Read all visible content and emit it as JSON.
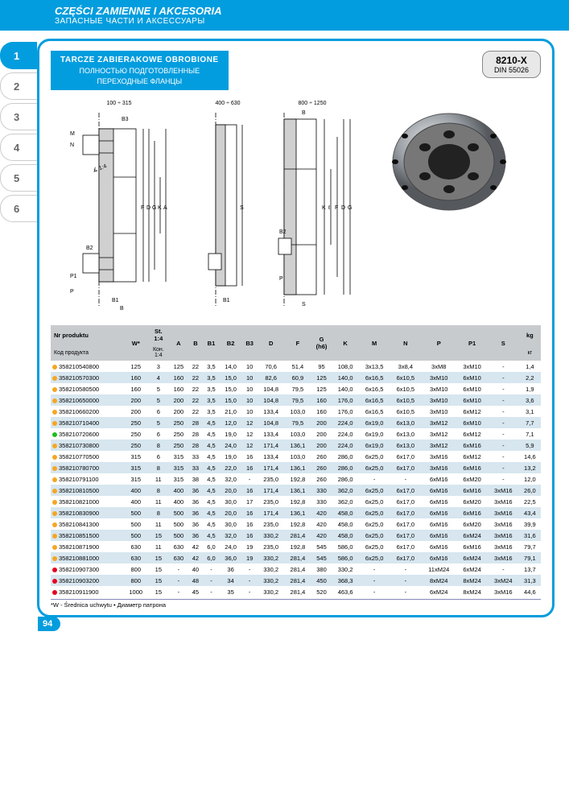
{
  "header": {
    "title_pl": "CZĘŚCI ZAMIENNE I AKCESORIA",
    "title_ru": "ЗАПАСНЫЕ ЧАСТИ И АКСЕССУАРЫ"
  },
  "tabs": [
    "1",
    "2",
    "3",
    "4",
    "5",
    "6"
  ],
  "active_tab": 0,
  "product_title": {
    "l1": "TARCZE ZABIERAKOWE OBROBIONE",
    "l2": "ПОЛНОСТЬЮ ПОДГОТОВЛЕННЫЕ",
    "l3": "ПЕРЕХОДНЫЕ ФЛАНЦЫ"
  },
  "code_box": {
    "c1": "8210-X",
    "c2": "DIN 55026"
  },
  "diagram_labels": {
    "r1": "100 ÷ 315",
    "r2": "400 ÷ 630",
    "r3": "800 ÷ 1250"
  },
  "table": {
    "header": {
      "nr_pl": "Nr produktu",
      "nr_ru": "Код продукта",
      "w": "W*",
      "st": "St.\n1:4",
      "kon": "Кон.\n1:4",
      "cols": [
        "A",
        "B",
        "B1",
        "B2",
        "B3",
        "D",
        "F",
        "G\n(h6)",
        "K",
        "M",
        "N",
        "P",
        "P1",
        "S"
      ],
      "kg_pl": "kg",
      "kg_ru": "кг"
    },
    "dot_colors": {
      "orange": "#f5a623",
      "green": "#1bbf1b",
      "red": "#e6001f"
    },
    "rows": [
      {
        "dot": "orange",
        "pn": "358210540800",
        "v": [
          "125",
          "3",
          "125",
          "22",
          "3,5",
          "14,0",
          "10",
          "70,6",
          "51,4",
          "95",
          "108,0",
          "3x13,5",
          "3x8,4",
          "3xM8",
          "3xM10",
          "-",
          "1,4"
        ]
      },
      {
        "dot": "orange",
        "pn": "358210570300",
        "v": [
          "160",
          "4",
          "160",
          "22",
          "3,5",
          "15,0",
          "10",
          "82,6",
          "60,9",
          "125",
          "140,0",
          "6x16,5",
          "6x10,5",
          "3xM10",
          "6xM10",
          "-",
          "2,2"
        ]
      },
      {
        "dot": "orange",
        "pn": "358210580500",
        "v": [
          "160",
          "5",
          "160",
          "22",
          "3,5",
          "15,0",
          "10",
          "104,8",
          "79,5",
          "125",
          "140,0",
          "6x16,5",
          "6x10,5",
          "3xM10",
          "6xM10",
          "-",
          "1,9"
        ]
      },
      {
        "dot": "orange",
        "pn": "358210650000",
        "v": [
          "200",
          "5",
          "200",
          "22",
          "3,5",
          "15,0",
          "10",
          "104,8",
          "79,5",
          "160",
          "176,0",
          "6x16,5",
          "6x10,5",
          "3xM10",
          "6xM10",
          "-",
          "3,6"
        ]
      },
      {
        "dot": "orange",
        "pn": "358210660200",
        "v": [
          "200",
          "6",
          "200",
          "22",
          "3,5",
          "21,0",
          "10",
          "133,4",
          "103,0",
          "160",
          "176,0",
          "6x16,5",
          "6x10,5",
          "3xM10",
          "6xM12",
          "-",
          "3,1"
        ]
      },
      {
        "dot": "orange",
        "pn": "358210710400",
        "v": [
          "250",
          "5",
          "250",
          "28",
          "4,5",
          "12,0",
          "12",
          "104,8",
          "79,5",
          "200",
          "224,0",
          "6x19,0",
          "6x13,0",
          "3xM12",
          "6xM10",
          "-",
          "7,7"
        ]
      },
      {
        "dot": "green",
        "pn": "358210720600",
        "v": [
          "250",
          "6",
          "250",
          "28",
          "4,5",
          "19,0",
          "12",
          "133,4",
          "103,0",
          "200",
          "224,0",
          "6x19,0",
          "6x13,0",
          "3xM12",
          "6xM12",
          "-",
          "7,1"
        ]
      },
      {
        "dot": "orange",
        "pn": "358210730800",
        "v": [
          "250",
          "8",
          "250",
          "28",
          "4,5",
          "24,0",
          "12",
          "171,4",
          "136,1",
          "200",
          "224,0",
          "6x19,0",
          "6x13,0",
          "3xM12",
          "6xM16",
          "-",
          "5,9"
        ]
      },
      {
        "dot": "orange",
        "pn": "358210770500",
        "v": [
          "315",
          "6",
          "315",
          "33",
          "4,5",
          "19,0",
          "16",
          "133,4",
          "103,0",
          "260",
          "286,0",
          "6x25,0",
          "6x17,0",
          "3xM16",
          "6xM12",
          "-",
          "14,6"
        ]
      },
      {
        "dot": "orange",
        "pn": "358210780700",
        "v": [
          "315",
          "8",
          "315",
          "33",
          "4,5",
          "22,0",
          "16",
          "171,4",
          "136,1",
          "260",
          "286,0",
          "6x25,0",
          "6x17,0",
          "3xM16",
          "6xM16",
          "-",
          "13,2"
        ]
      },
      {
        "dot": "orange",
        "pn": "358210791100",
        "v": [
          "315",
          "11",
          "315",
          "38",
          "4,5",
          "32,0",
          "-",
          "235,0",
          "192,8",
          "260",
          "286,0",
          "-",
          "-",
          "6xM16",
          "6xM20",
          "-",
          "12,0"
        ]
      },
      {
        "dot": "orange",
        "pn": "358210810500",
        "v": [
          "400",
          "8",
          "400",
          "36",
          "4,5",
          "20,0",
          "16",
          "171,4",
          "136,1",
          "330",
          "362,0",
          "6x25,0",
          "6x17,0",
          "6xM16",
          "6xM16",
          "3xM16",
          "26,0"
        ]
      },
      {
        "dot": "orange",
        "pn": "358210821000",
        "v": [
          "400",
          "11",
          "400",
          "36",
          "4,5",
          "30,0",
          "17",
          "235,0",
          "192,8",
          "330",
          "362,0",
          "6x25,0",
          "6x17,0",
          "6xM16",
          "6xM20",
          "3xM16",
          "22,5"
        ]
      },
      {
        "dot": "orange",
        "pn": "358210830900",
        "v": [
          "500",
          "8",
          "500",
          "36",
          "4,5",
          "20,0",
          "16",
          "171,4",
          "136,1",
          "420",
          "458,0",
          "6x25,0",
          "6x17,0",
          "6xM16",
          "6xM16",
          "3xM16",
          "43,4"
        ]
      },
      {
        "dot": "orange",
        "pn": "358210841300",
        "v": [
          "500",
          "11",
          "500",
          "36",
          "4,5",
          "30,0",
          "16",
          "235,0",
          "192,8",
          "420",
          "458,0",
          "6x25,0",
          "6x17,0",
          "6xM16",
          "6xM20",
          "3xM16",
          "39,9"
        ]
      },
      {
        "dot": "orange",
        "pn": "358210851500",
        "v": [
          "500",
          "15",
          "500",
          "36",
          "4,5",
          "32,0",
          "16",
          "330,2",
          "281,4",
          "420",
          "458,0",
          "6x25,0",
          "6x17,0",
          "6xM16",
          "6xM24",
          "3xM16",
          "31,6"
        ]
      },
      {
        "dot": "orange",
        "pn": "358210871900",
        "v": [
          "630",
          "11",
          "630",
          "42",
          "6,0",
          "24,0",
          "19",
          "235,0",
          "192,8",
          "545",
          "586,0",
          "6x25,0",
          "6x17,0",
          "6xM16",
          "6xM16",
          "3xM16",
          "79,7"
        ]
      },
      {
        "dot": "orange",
        "pn": "358210881000",
        "v": [
          "630",
          "15",
          "630",
          "42",
          "6,0",
          "36,0",
          "19",
          "330,2",
          "281,4",
          "545",
          "586,0",
          "6x25,0",
          "6x17,0",
          "6xM16",
          "6xM24",
          "3xM16",
          "79,1"
        ]
      },
      {
        "dot": "red",
        "pn": "358210907300",
        "v": [
          "800",
          "15",
          "-",
          "40",
          "-",
          "36",
          "-",
          "330,2",
          "281,4",
          "380",
          "330,2",
          "-",
          "-",
          "11xM24",
          "6xM24",
          "-",
          "13,7"
        ]
      },
      {
        "dot": "red",
        "pn": "358210903200",
        "v": [
          "800",
          "15",
          "-",
          "48",
          "-",
          "34",
          "-",
          "330,2",
          "281,4",
          "450",
          "368,3",
          "-",
          "-",
          "8xM24",
          "8xM24",
          "3xM24",
          "31,3"
        ]
      },
      {
        "dot": "red",
        "pn": "358210911900",
        "v": [
          "1000",
          "15",
          "-",
          "45",
          "-",
          "35",
          "-",
          "330,2",
          "281,4",
          "520",
          "463,6",
          "-",
          "-",
          "6xM24",
          "8xM24",
          "3xM16",
          "44,6"
        ]
      }
    ]
  },
  "footnote": "*W - Średnica uchwytu • Диаметр патрона",
  "page_number": "94",
  "colors": {
    "brand": "#029dde",
    "header_grey": "#c8cbce",
    "row_alt": "#d7e6ef"
  }
}
